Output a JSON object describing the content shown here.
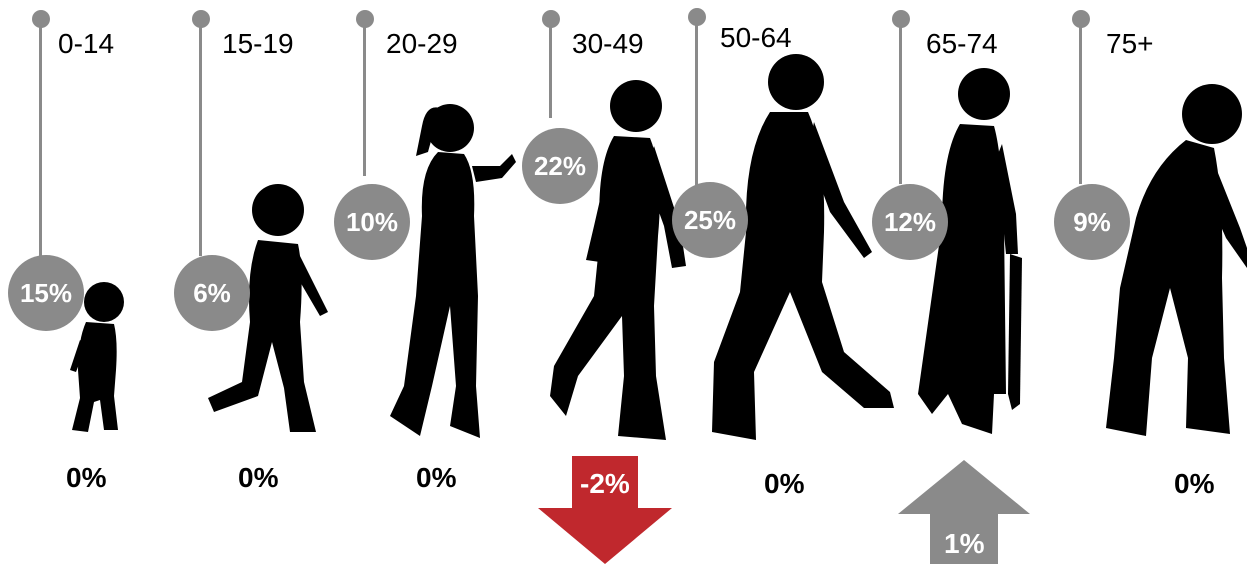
{
  "groups": [
    {
      "age": "0-14",
      "share": "15%",
      "change": "0%"
    },
    {
      "age": "15-19",
      "share": "6%",
      "change": "0%"
    },
    {
      "age": "20-29",
      "share": "10%",
      "change": "0%"
    },
    {
      "age": "30-49",
      "share": "22%",
      "change": "-2%"
    },
    {
      "age": "50-64",
      "share": "25%",
      "change": "0%"
    },
    {
      "age": "65-74",
      "share": "12%",
      "change": "1%"
    },
    {
      "age": "75+",
      "share": "9%",
      "change": "0%"
    }
  ],
  "colors": {
    "pin": "#8a8a8a",
    "silhouette": "#000000",
    "down_arrow": "#c0282d",
    "up_arrow": "#8a8a8a"
  },
  "icons": [
    "toddler-silhouette-icon",
    "child-silhouette-icon",
    "young-woman-silhouette-icon",
    "man-silhouette-icon",
    "walking-man-silhouette-icon",
    "elderly-woman-silhouette-icon",
    "elderly-man-silhouette-icon"
  ]
}
